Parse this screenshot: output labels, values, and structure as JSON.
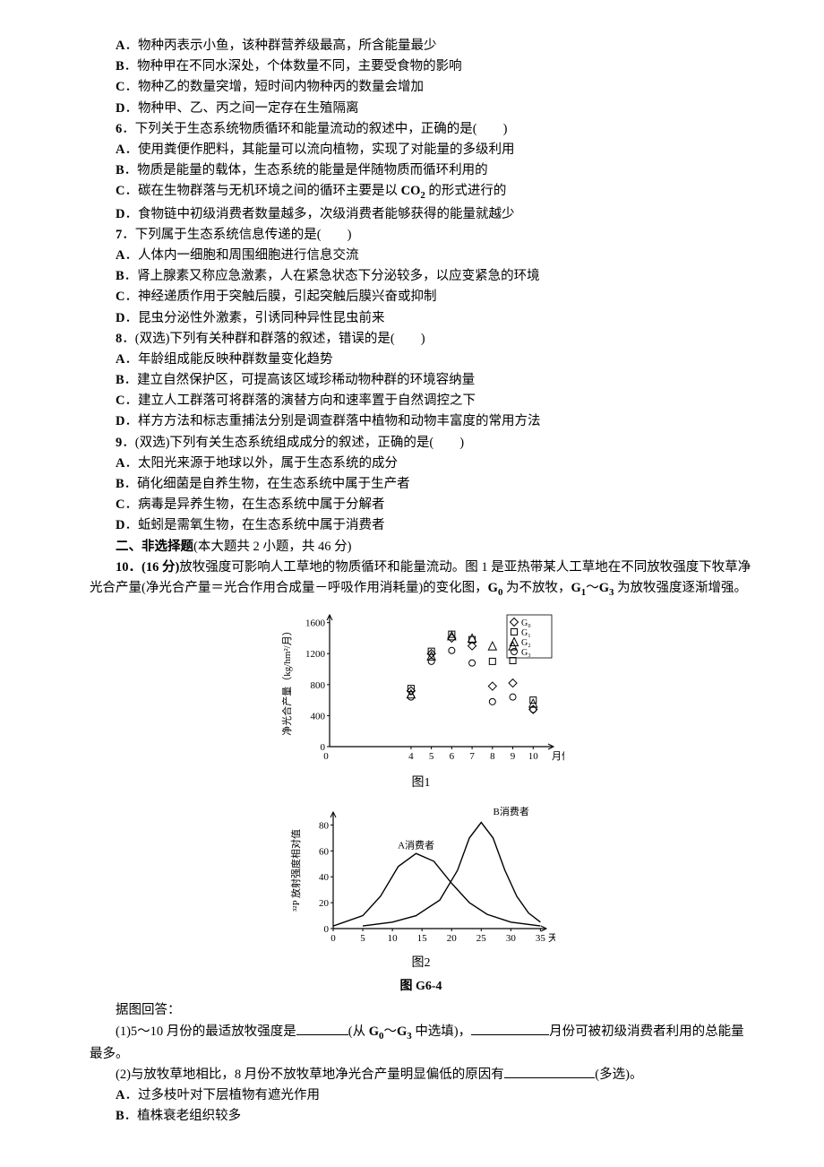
{
  "choices_pre": [
    {
      "label": "A",
      "text": "．物种丙表示小鱼，该种群营养级最高，所含能量最少"
    },
    {
      "label": "B",
      "text": "．物种甲在不同水深处，个体数量不同，主要受食物的影响"
    },
    {
      "label": "C",
      "text": "．物种乙的数量突增，短时间内物种丙的数量会增加"
    },
    {
      "label": "D",
      "text": "．物种甲、乙、丙之间一定存在生殖隔离"
    }
  ],
  "q6": {
    "stem_pre": "6",
    "stem": "．下列关于生态系统物质循环和能量流动的叙述中，正确的是(　　)",
    "opts": [
      {
        "label": "A",
        "text": "．使用粪便作肥料，其能量可以流向植物，实现了对能量的多级利用"
      },
      {
        "label": "B",
        "text": "．物质是能量的载体，生态系统的能量是伴随物质而循环利用的"
      },
      {
        "label": "C",
        "pre": "．碳在生物群落与无机环境之间的循环主要是以 ",
        "co2_pre": "CO",
        "co2_sub": "2",
        "post": " 的形式进行的"
      },
      {
        "label": "D",
        "text": "．食物链中初级消费者数量越多，次级消费者能够获得的能量就越少"
      }
    ]
  },
  "q7": {
    "stem_pre": "7",
    "stem": "．下列属于生态系统信息传递的是(　　)",
    "opts": [
      {
        "label": "A",
        "text": "．人体内一细胞和周围细胞进行信息交流"
      },
      {
        "label": "B",
        "text": "．肾上腺素又称应急激素，人在紧急状态下分泌较多，以应变紧急的环境"
      },
      {
        "label": "C",
        "text": "．神经递质作用于突触后膜，引起突触后膜兴奋或抑制"
      },
      {
        "label": "D",
        "text": "．昆虫分泌性外激素，引诱同种异性昆虫前来"
      }
    ]
  },
  "q8": {
    "stem_pre": "8",
    "stem": "．(双选)下列有关种群和群落的叙述，错误的是(　　)",
    "opts": [
      {
        "label": "A",
        "text": "．年龄组成能反映种群数量变化趋势"
      },
      {
        "label": "B",
        "text": "．建立自然保护区，可提高该区域珍稀动物种群的环境容纳量"
      },
      {
        "label": "C",
        "text": "．建立人工群落可将群落的演替方向和速率置于自然调控之下"
      },
      {
        "label": "D",
        "text": "．样方方法和标志重捕法分别是调查群落中植物和动物丰富度的常用方法"
      }
    ]
  },
  "q9": {
    "stem_pre": "9",
    "stem": "．(双选)下列有关生态系统组成成分的叙述，正确的是(　　)",
    "opts": [
      {
        "label": "A",
        "text": "．太阳光来源于地球以外，属于生态系统的成分"
      },
      {
        "label": "B",
        "text": "．硝化细菌是自养生物，在生态系统中属于生产者"
      },
      {
        "label": "C",
        "text": "．病毒是异养生物，在生态系统中属于分解者"
      },
      {
        "label": "D",
        "text": "．蚯蚓是需氧生物，在生态系统中属于消费者"
      }
    ]
  },
  "section2": {
    "pre": "二、非选择题",
    "text": "(本大题共 2 小题，共 46 分)"
  },
  "q10": {
    "head_num": "10",
    "head_score": "．(16 分)",
    "para1_a": "放牧强度可影响人工草地的物质循环和能量流动。图 1 是亚热带某人工草地在不同放牧强度下牧草净光合产量(净光合产量＝光合作用合成量－呼吸作用消耗量)的变化图，",
    "g0": "G",
    "g0s": "0",
    "mid1": " 为不放牧，",
    "g1": "G",
    "g1s": "1",
    "tilde": "～",
    "g3": "G",
    "g3s": "3",
    "tail1": " 为放牧强度逐渐增强。",
    "fig1_label": "图1",
    "fig2_big_label": "图 G6-4",
    "fig2_sub_label": "图2",
    "ask": "据图回答：",
    "p1_pre": "(1)5～10 月份的最适放牧强度是",
    "p1_mid": "(从 ",
    "p1_g0": "G",
    "p1_g0s": "0",
    "p1_t": "～",
    "p1_g3": "G",
    "p1_g3s": "3",
    "p1_mid2": " 中选填)，",
    "p1_tail": "月份可被初级消费者利用的总能量最多。",
    "p2_pre": "(2)与放牧草地相比，8 月份不放牧草地净光合产量明显偏低的原因有",
    "p2_tail": "(多选)。",
    "p2_opts": [
      {
        "label": "A",
        "text": "．过多枝叶对下层植物有遮光作用"
      },
      {
        "label": "B",
        "text": "．植株衰老组织较多"
      }
    ]
  },
  "chart1": {
    "type": "scatter",
    "ylabel": "净光合产量（kg/hm²/月）",
    "xlabel": "月份",
    "xticks": [
      0,
      4,
      5,
      6,
      7,
      8,
      9,
      10
    ],
    "yticks": [
      0,
      400,
      800,
      1200,
      1600
    ],
    "xlim": [
      0,
      11
    ],
    "ylim": [
      0,
      1700
    ],
    "legend": [
      "G₀",
      "G₁",
      "G₂",
      "G₃"
    ],
    "legend_markers": [
      "diamond",
      "square",
      "triangle",
      "circle"
    ],
    "background": "#ffffff",
    "axis_color": "#000000",
    "marker_color": "#000000",
    "marker_size": 4.5,
    "series": {
      "G0": [
        [
          4,
          720
        ],
        [
          5,
          1200
        ],
        [
          6,
          1400
        ],
        [
          7,
          1300
        ],
        [
          8,
          780
        ],
        [
          9,
          820
        ],
        [
          10,
          480
        ]
      ],
      "G1": [
        [
          4,
          750
        ],
        [
          5,
          1230
        ],
        [
          6,
          1450
        ],
        [
          7,
          1380
        ],
        [
          8,
          1100
        ],
        [
          9,
          1110
        ],
        [
          10,
          600
        ]
      ],
      "G2": [
        [
          4,
          680
        ],
        [
          5,
          1170
        ],
        [
          6,
          1430
        ],
        [
          7,
          1400
        ],
        [
          8,
          1300
        ],
        [
          9,
          1300
        ],
        [
          10,
          560
        ]
      ],
      "G3": [
        [
          4,
          640
        ],
        [
          5,
          1100
        ],
        [
          6,
          1240
        ],
        [
          7,
          1080
        ],
        [
          8,
          580
        ],
        [
          9,
          640
        ],
        [
          10,
          480
        ]
      ]
    }
  },
  "chart2": {
    "type": "line",
    "ylabel": "³²P 放射强度相对值",
    "xlabel": "天",
    "xticks": [
      0,
      5,
      10,
      15,
      20,
      25,
      30,
      35
    ],
    "yticks": [
      0,
      20,
      40,
      60,
      80
    ],
    "xlim": [
      0,
      36
    ],
    "ylim": [
      0,
      90
    ],
    "labelA": "A消费者",
    "labelB": "B消费者",
    "background": "#ffffff",
    "axis_color": "#000000",
    "line_color": "#000000",
    "line_width": 1.4,
    "curveA": [
      [
        0,
        2
      ],
      [
        5,
        10
      ],
      [
        8,
        25
      ],
      [
        11,
        48
      ],
      [
        14,
        58
      ],
      [
        17,
        52
      ],
      [
        20,
        35
      ],
      [
        23,
        20
      ],
      [
        26,
        11
      ],
      [
        30,
        5
      ],
      [
        35,
        2
      ]
    ],
    "curveB": [
      [
        5,
        2
      ],
      [
        10,
        5
      ],
      [
        14,
        10
      ],
      [
        18,
        22
      ],
      [
        21,
        45
      ],
      [
        23,
        70
      ],
      [
        25,
        82
      ],
      [
        27,
        70
      ],
      [
        29,
        45
      ],
      [
        31,
        25
      ],
      [
        33,
        12
      ],
      [
        35,
        5
      ]
    ]
  }
}
